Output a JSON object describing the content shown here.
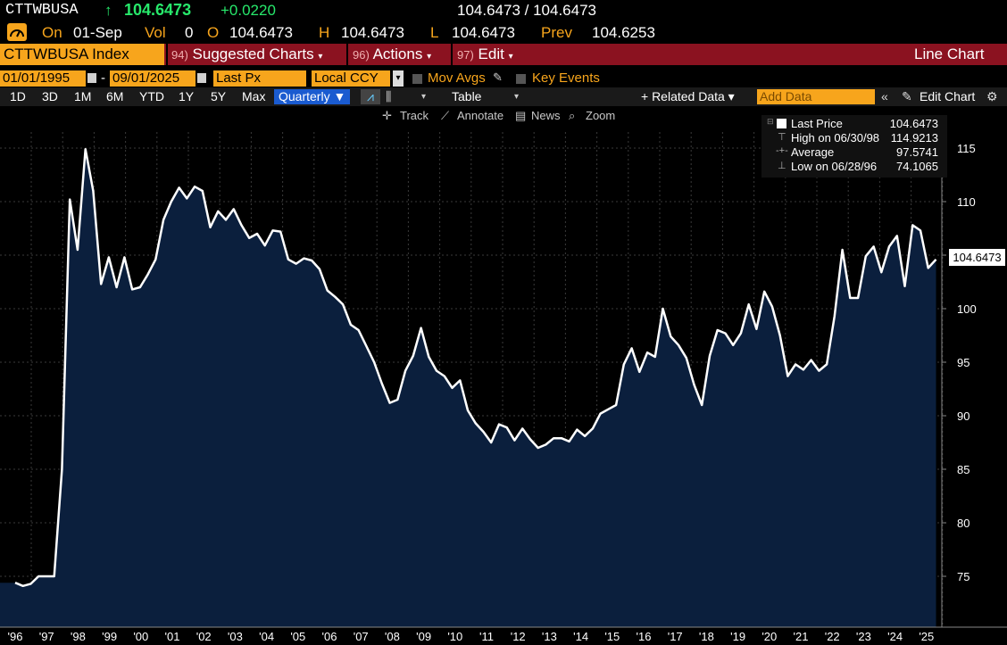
{
  "header": {
    "ticker": "CTTWBUSA",
    "arrow": "↑",
    "price": "104.6473",
    "change": "+0.0220",
    "bid_ask": "104.6473 / 104.6473",
    "on_label": "On",
    "date": "01-Sep",
    "vol_label": "Vol",
    "vol": "0",
    "o_label": "O",
    "open": "104.6473",
    "h_label": "H",
    "high": "104.6473",
    "l_label": "L",
    "low": "104.6473",
    "prev_label": "Prev",
    "prev": "104.6253"
  },
  "toolbar": {
    "security": "CTTWBUSA Index",
    "suggested_num": "94)",
    "suggested": "Suggested Charts",
    "actions_num": "96)",
    "actions": "Actions",
    "edit_num": "97)",
    "edit": "Edit",
    "chart_type": "Line Chart"
  },
  "controls": {
    "start_date": "01/01/1995",
    "dash": "-",
    "end_date": "09/01/2025",
    "field": "Last Px",
    "currency": "Local CCY",
    "mov_avgs": "Mov Avgs",
    "key_events": "Key Events",
    "ranges": [
      "1D",
      "3D",
      "1M",
      "6M",
      "YTD",
      "1Y",
      "5Y",
      "Max"
    ],
    "period": "Quarterly ▼",
    "table": "Table",
    "related": "+ Related Data ▾",
    "add_data_placeholder": "Add Data",
    "edit_chart": "Edit Chart",
    "track": "Track",
    "annotate": "Annotate",
    "news": "News",
    "zoom": "Zoom"
  },
  "legend": {
    "last_label": "Last Price",
    "last_value": "104.6473",
    "high_label": "High on 06/30/98",
    "high_value": "114.9213",
    "avg_label": "Average",
    "avg_value": "97.5741",
    "low_label": "Low on 06/28/96",
    "low_value": "74.1065"
  },
  "price_label": "104.6473",
  "colors": {
    "accent": "#f7a51c",
    "bar": "#8b1220",
    "fill": "#0b1f3d",
    "up": "#27e86b"
  },
  "chart_data": {
    "type": "area",
    "yticks": [
      75,
      80,
      85,
      90,
      95,
      100,
      105,
      110,
      115
    ],
    "ylim": [
      70,
      118
    ],
    "xticks": [
      "'96",
      "'97",
      "'98",
      "'99",
      "'00",
      "'01",
      "'02",
      "'03",
      "'04",
      "'05",
      "'06",
      "'07",
      "'08",
      "'09",
      "'10",
      "'11",
      "'12",
      "'13",
      "'14",
      "'15",
      "'16",
      "'17",
      "'18",
      "'19",
      "'20",
      "'21",
      "'22",
      "'23",
      "'24",
      "'25"
    ],
    "xlim": [
      1995.95,
      2025.95
    ],
    "x": [
      1996.0,
      1996.25,
      1996.5,
      1996.75,
      1997.0,
      1997.25,
      1997.5,
      1997.75,
      1998.0,
      1998.25,
      1998.5,
      1998.75,
      1999.0,
      1999.25,
      1999.5,
      1999.75,
      2000.0,
      2000.25,
      2000.5,
      2000.75,
      2001.0,
      2001.25,
      2001.5,
      2001.75,
      2002.0,
      2002.25,
      2002.5,
      2002.75,
      2003.0,
      2003.25,
      2003.5,
      2003.75,
      2004.0,
      2004.25,
      2004.5,
      2004.75,
      2005.0,
      2005.25,
      2005.5,
      2005.75,
      2006.0,
      2006.25,
      2006.5,
      2006.75,
      2007.0,
      2007.25,
      2007.5,
      2007.75,
      2008.0,
      2008.25,
      2008.5,
      2008.75,
      2009.0,
      2009.25,
      2009.5,
      2009.75,
      2010.0,
      2010.25,
      2010.5,
      2010.75,
      2011.0,
      2011.25,
      2011.5,
      2011.75,
      2012.0,
      2012.25,
      2012.5,
      2012.75,
      2013.0,
      2013.25,
      2013.5,
      2013.75,
      2014.0,
      2014.25,
      2014.5,
      2014.75,
      2015.0,
      2015.25,
      2015.5,
      2015.75,
      2016.0,
      2016.25,
      2016.5,
      2016.75,
      2017.0,
      2017.25,
      2017.5,
      2017.75,
      2018.0,
      2018.25,
      2018.5,
      2018.75,
      2019.0,
      2019.25,
      2019.5,
      2019.75,
      2020.0,
      2020.25,
      2020.5,
      2020.75,
      2021.0,
      2021.25,
      2021.5,
      2021.75,
      2022.0,
      2022.25,
      2022.5,
      2022.75,
      2023.0,
      2023.25,
      2023.5,
      2023.75,
      2024.0,
      2024.25,
      2024.5,
      2024.75,
      2025.0,
      2025.25,
      2025.5
    ],
    "values": [
      74.4,
      74.1,
      74.3,
      75.0,
      75.0,
      75.0,
      85.0,
      110.2,
      105.5,
      114.9,
      111.0,
      102.3,
      104.8,
      102.0,
      104.8,
      101.8,
      102.0,
      103.2,
      104.6,
      108.3,
      110.0,
      111.3,
      110.3,
      111.4,
      111.0,
      107.6,
      109.1,
      108.3,
      109.3,
      107.8,
      106.6,
      107.0,
      105.9,
      107.3,
      107.2,
      104.6,
      104.2,
      104.7,
      104.5,
      103.7,
      101.7,
      101.1,
      100.4,
      98.5,
      98.0,
      96.5,
      95.0,
      93.0,
      91.2,
      91.5,
      94.2,
      95.6,
      98.2,
      95.5,
      94.2,
      93.7,
      92.6,
      93.3,
      90.5,
      89.3,
      88.5,
      87.5,
      89.2,
      88.9,
      87.7,
      88.8,
      87.8,
      87.0,
      87.3,
      87.9,
      87.9,
      87.6,
      88.7,
      88.1,
      88.8,
      90.2,
      90.6,
      91.0,
      94.8,
      96.3,
      94.1,
      95.9,
      95.5,
      100.0,
      97.4,
      96.6,
      95.4,
      92.9,
      91.0,
      95.6,
      98.0,
      97.7,
      96.6,
      97.7,
      100.4,
      98.1,
      101.6,
      100.2,
      97.5,
      93.7,
      94.8,
      94.3,
      95.2,
      94.2,
      94.8,
      99.3,
      105.5,
      101.0,
      101.0,
      104.9,
      105.8,
      103.4,
      105.8,
      106.8,
      102.1,
      107.8,
      107.3,
      103.8,
      104.6
    ]
  }
}
